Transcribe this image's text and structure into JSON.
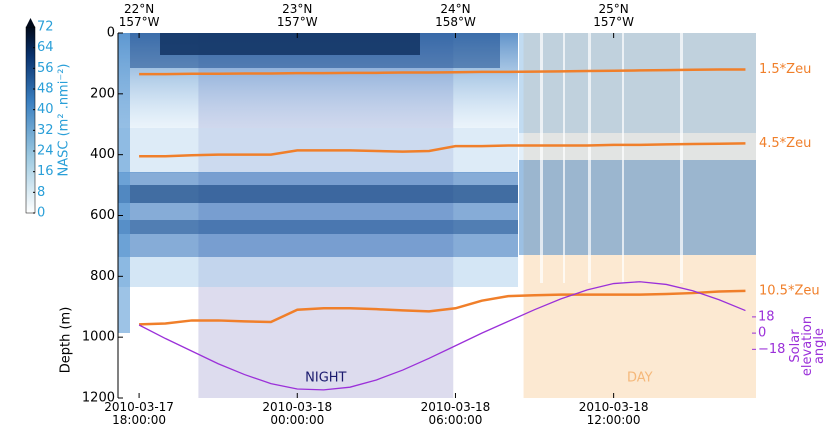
{
  "chart_data": {
    "type": "line",
    "x": [
      "2010-03-17 18:00:00",
      "2010-03-17 19:00:00",
      "2010-03-17 20:00:00",
      "2010-03-17 21:00:00",
      "2010-03-17 22:00:00",
      "2010-03-17 23:00:00",
      "2010-03-18 00:00:00",
      "2010-03-18 01:00:00",
      "2010-03-18 02:00:00",
      "2010-03-18 03:00:00",
      "2010-03-18 04:00:00",
      "2010-03-18 05:00:00",
      "2010-03-18 06:00:00",
      "2010-03-18 07:00:00",
      "2010-03-18 08:00:00",
      "2010-03-18 09:00:00",
      "2010-03-18 10:00:00",
      "2010-03-18 11:00:00",
      "2010-03-18 12:00:00",
      "2010-03-18 13:00:00",
      "2010-03-18 14:00:00",
      "2010-03-18 15:00:00",
      "2010-03-18 16:00:00",
      "2010-03-18 17:00:00"
    ],
    "xlim": [
      "2010-03-17 17:12:00",
      "2010-03-18 17:24:00"
    ],
    "xticks": [
      "2010-03-17 18:00:00",
      "2010-03-18 00:00:00",
      "2010-03-18 06:00:00",
      "2010-03-18 12:00:00"
    ],
    "top_ticks": [
      {
        "value": "2010-03-17 18:00:00",
        "label": "22°N 157°W"
      },
      {
        "value": "2010-03-18 00:00:00",
        "label": "23°N 157°W"
      },
      {
        "value": "2010-03-18 06:00:00",
        "label": "24°N 158°W"
      },
      {
        "value": "2010-03-18 12:00:00",
        "label": "25°N 157°W"
      }
    ],
    "y_label": "Depth (m)",
    "ylim": [
      1200,
      0
    ],
    "yticks": [
      0,
      200,
      400,
      600,
      800,
      1000,
      1200
    ],
    "y2_label": "Solar elevation angle",
    "y2lim": [
      -72,
      333
    ],
    "y2ticks": [
      18,
      0,
      {
        "value": -18,
        "label": "−18"
      }
    ],
    "series": [
      {
        "name": "1.5*Zeu",
        "color": "#f07f2a",
        "values": [
          135,
          135,
          134,
          134,
          133,
          133,
          132,
          132,
          131,
          131,
          130,
          130,
          129,
          128,
          128,
          127,
          126,
          125,
          124,
          123,
          122,
          121,
          120,
          120
        ]
      },
      {
        "name": "4.5*Zeu",
        "color": "#f07f2a",
        "values": [
          405,
          405,
          402,
          400,
          400,
          400,
          386,
          386,
          386,
          388,
          390,
          388,
          372,
          372,
          370,
          370,
          370,
          370,
          368,
          368,
          366,
          365,
          364,
          363
        ]
      },
      {
        "name": "10.5*Zeu",
        "color": "#f07f2a",
        "values": [
          958,
          955,
          945,
          945,
          948,
          950,
          910,
          905,
          905,
          908,
          912,
          915,
          905,
          880,
          865,
          862,
          860,
          860,
          860,
          860,
          858,
          855,
          850,
          848
        ]
      },
      {
        "axis": "y2",
        "color": "#9b30d9",
        "values": [
          9,
          -6,
          -20,
          -34,
          -46,
          -56,
          -62,
          -63,
          -60,
          -52,
          -41,
          -28,
          -14,
          0,
          13,
          26,
          38,
          48,
          55,
          57,
          54,
          47,
          37,
          25
        ]
      }
    ],
    "regions": [
      {
        "label": "NIGHT",
        "start": "2010-03-17 20:15:00",
        "end": "2010-03-18 05:55:00",
        "color": "#dddcee",
        "label_color": "#1a1a6e"
      },
      {
        "label": "DAY",
        "start": "2010-03-18 08:35:00",
        "end": "2010-03-18 17:24:00",
        "color": "#fce9d2",
        "label_color": "#f5b87a"
      }
    ],
    "colorbar": {
      "label": "NASC (m² .nmi⁻²)",
      "lim": [
        0,
        72
      ],
      "ticks": [
        0,
        8,
        16,
        24,
        32,
        40,
        48,
        56,
        64,
        72
      ],
      "color": "#2a9fd8"
    }
  }
}
